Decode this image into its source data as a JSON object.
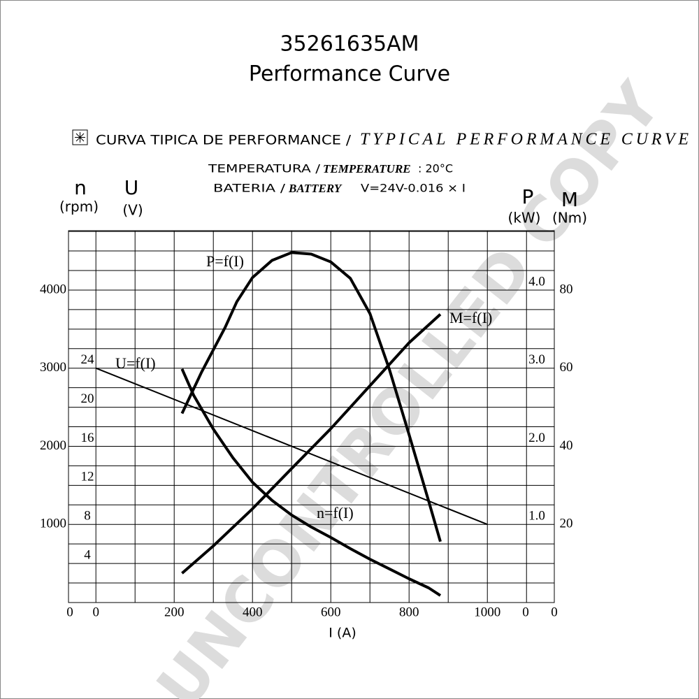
{
  "chart_data": {
    "type": "line",
    "title": "35261635AM",
    "subtitle": "Performance Curve",
    "header": {
      "spanish": "CURVA TIPICA DE PERFORMANCE /",
      "english": "TYPICAL PERFORMANCE CURVE",
      "temperature_es": "TEMPERATURA /",
      "temperature_en": "TEMPERATURE",
      "temperature_value": ": 20°C",
      "battery_es": "BATERIA /",
      "battery_en": "BATTERY",
      "battery_value": "V=24V-0.016 × I"
    },
    "watermark": "UNCONTROLLED COPY",
    "x_label": "I (A)",
    "xlim": [
      -70,
      1171
    ],
    "xticks": [
      0,
      200,
      400,
      600,
      800,
      1000
    ],
    "xgrid": [
      0,
      100,
      200,
      300,
      400,
      500,
      600,
      700,
      800,
      900,
      1000,
      1100
    ],
    "ygrid": [
      0,
      250,
      500,
      750,
      1000,
      1250,
      1500,
      1750,
      2000,
      2250,
      2500,
      2750,
      3000,
      3250,
      3500,
      3750,
      4000,
      4250,
      4500,
      4750
    ],
    "axes": [
      {
        "name": "n",
        "unit": "(rpm)",
        "lim": [
          0,
          4760
        ],
        "ticks": [
          0,
          1000,
          2000,
          3000,
          4000
        ]
      },
      {
        "name": "U",
        "unit": "(V)",
        "lim": [
          0,
          38.08
        ],
        "ticks": [
          4,
          8,
          12,
          16,
          20,
          24
        ]
      },
      {
        "name": "P",
        "unit": "(kW)",
        "lim": [
          0,
          4.76
        ],
        "ticks": [
          0,
          {
            "value": 1,
            "label": "1.0"
          },
          {
            "value": 2,
            "label": "2.0"
          },
          {
            "value": 3,
            "label": "3.0"
          },
          {
            "value": 4,
            "label": "4.0"
          }
        ]
      },
      {
        "name": "M",
        "unit": "(Nm)",
        "lim": [
          0,
          95.2
        ],
        "ticks": [
          0,
          20,
          40,
          60,
          80
        ]
      }
    ],
    "series": [
      {
        "name": "n=f(I)",
        "axis": "n",
        "color": "#000000",
        "x": [
          220,
          250,
          300,
          350,
          400,
          450,
          500,
          550,
          600,
          650,
          700,
          750,
          800,
          850,
          880
        ],
        "values": [
          2990,
          2650,
          2220,
          1853,
          1540,
          1307,
          1120,
          967,
          833,
          690,
          555,
          430,
          304,
          188,
          90
        ]
      },
      {
        "name": "U=f(I)",
        "axis": "U",
        "color": "#000000",
        "x": [
          0,
          1000
        ],
        "values": [
          24,
          8
        ]
      },
      {
        "name": "P=f(I)",
        "axis": "P",
        "color": "#000000",
        "x": [
          220,
          270,
          330,
          360,
          400,
          450,
          500,
          550,
          600,
          650,
          700,
          750,
          800,
          850,
          880
        ],
        "values": [
          2.42,
          2.95,
          3.52,
          3.85,
          4.16,
          4.38,
          4.48,
          4.46,
          4.36,
          4.15,
          3.7,
          2.98,
          2.15,
          1.3,
          0.78
        ]
      },
      {
        "name": "M=f(I)",
        "axis": "M",
        "color": "#000000",
        "x": [
          220,
          300,
          400,
          500,
          600,
          700,
          800,
          880
        ],
        "values": [
          7.5,
          14.5,
          24,
          34.3,
          44.5,
          55.5,
          66.5,
          73.8
        ]
      }
    ]
  }
}
